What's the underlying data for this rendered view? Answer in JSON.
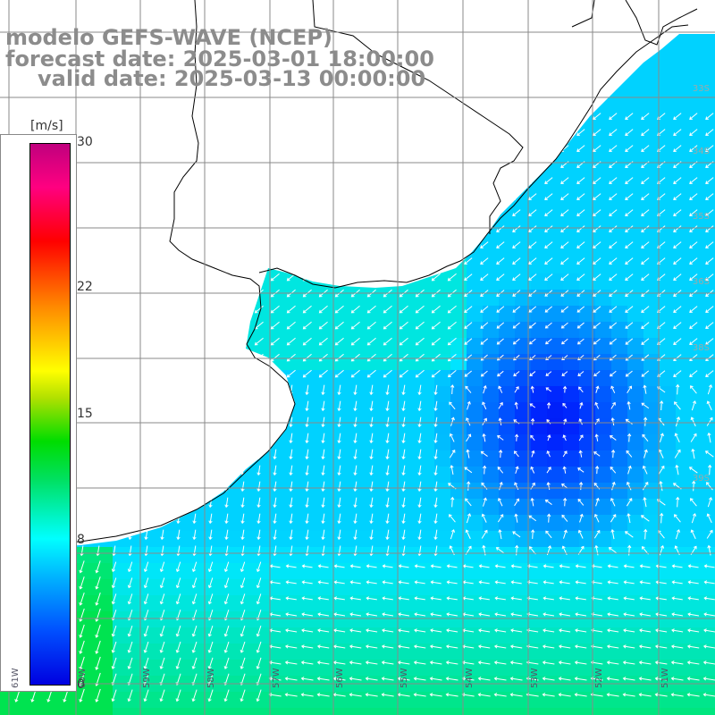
{
  "header": {
    "title_line1": "modelo GEFS-WAVE (NCEP)",
    "title_line2": "forecast date: 2025-03-01 18:00:00",
    "title_line3": "valid date: 2025-03-13 00:00:00"
  },
  "colorbar": {
    "units": "[m/s]",
    "ticks": [
      {
        "label": "30",
        "value": 30
      },
      {
        "label": "22",
        "value": 22
      },
      {
        "label": "15",
        "value": 15
      },
      {
        "label": "8",
        "value": 8
      },
      {
        "label": "0",
        "value": 0
      }
    ],
    "colors": [
      "#0000e0",
      "#0050ff",
      "#00b4ff",
      "#00ffff",
      "#00e060",
      "#00dd00",
      "#ffff00",
      "#ff8800",
      "#ff0000",
      "#c0007e"
    ]
  },
  "grid": {
    "lat_labels": [
      "33S",
      "34S",
      "35S",
      "36S",
      "38S",
      "39S"
    ],
    "lon_labels": [
      "61W",
      "60W",
      "59W",
      "58W",
      "57W",
      "56W",
      "55W",
      "54W",
      "53W",
      "52W",
      "51W"
    ]
  },
  "map": {
    "land_color": "#ffffff",
    "coast_color": "#000000",
    "vector_color": "#ffffff",
    "grid_color": "#8a8a8a"
  }
}
